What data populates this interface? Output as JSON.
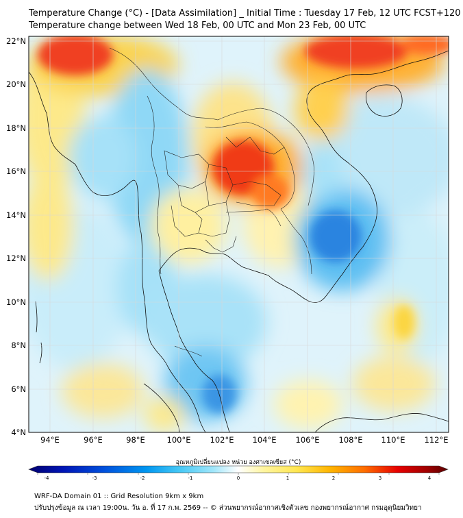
{
  "title_line1": "Temperature Change (°C) - [Data Assimilation] _ Initial Time : Tuesday 17 Feb, 12 UTC FCST+120",
  "title_line2": "Temperature change between Wed 18 Feb, 00 UTC and Mon 23 Feb, 00 UTC",
  "map": {
    "lon_range": [
      93,
      112.5
    ],
    "lat_range": [
      4,
      22.2
    ],
    "lon_ticks": [
      "94°E",
      "96°E",
      "98°E",
      "100°E",
      "102°E",
      "104°E",
      "106°E",
      "108°E",
      "110°E",
      "112°E"
    ],
    "lat_ticks": [
      "22°N",
      "20°N",
      "18°N",
      "16°N",
      "14°N",
      "12°N",
      "10°N",
      "8°N",
      "6°N",
      "4°N"
    ],
    "grid": true
  },
  "colorbar": {
    "title": "อุณหภูมิเปลี่ยนแปลง หน่วย องศาเซลเซียส (°C)",
    "range": [
      -4,
      4
    ],
    "tick_labels": [
      "-4",
      "-3",
      "-2",
      "-1",
      "0",
      "1",
      "2",
      "3",
      "4"
    ],
    "colors": [
      "#00006e",
      "#0014b4",
      "#0050dc",
      "#0096f0",
      "#46c8f5",
      "#a0e6fa",
      "#ffffff",
      "#fff5a0",
      "#ffe650",
      "#ffb400",
      "#ff6e00",
      "#e60000",
      "#a00000",
      "#5a0000"
    ]
  },
  "footer_line1": "WRF-DA Domain 01 :: Grid Resolution 9km x 9km",
  "footer_line2": "ปรับปรุงข้อมูล ณ เวลา 19:00น. วัน อ. ที่ 17 ก.พ. 2569 -- © ส่วนพยากรณ์อากาศเชิงตัวเลข กองพยากรณ์อากาศ กรมอุตุนิยมวิทยา"
}
